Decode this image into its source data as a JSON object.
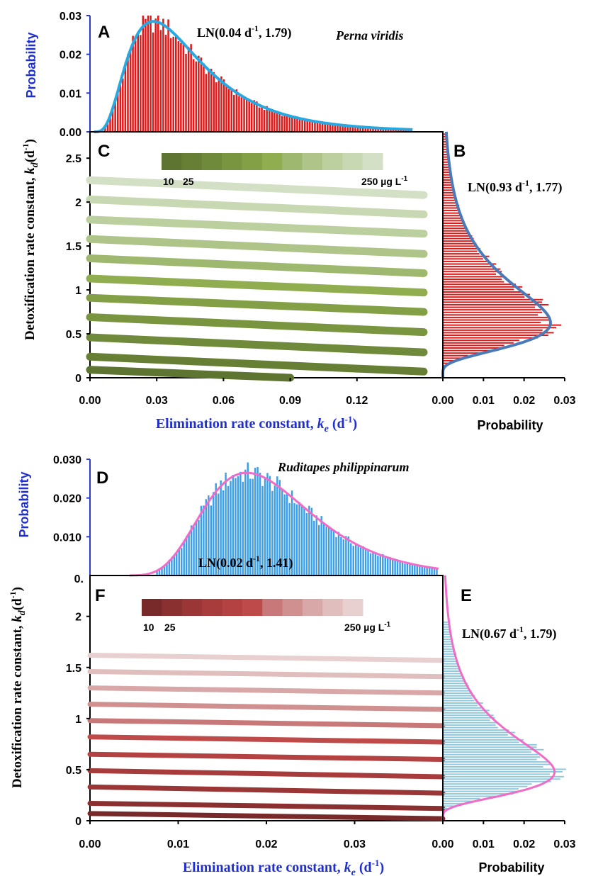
{
  "figure": {
    "colors": {
      "axis_blue": "#2a3bd0",
      "label_blue": "#1f2fd0",
      "red_bars": "#e01818",
      "cyan_curve": "#28a8e0",
      "steel_curve": "#4a7ab8",
      "blue_bars": "#3a9ee8",
      "pink_curve": "#f06cc8",
      "lightblue_bars": "#8cc8e0"
    }
  },
  "chart_data": [
    {
      "panel": "A",
      "type": "bar",
      "panel_label": "A",
      "species": "Perna viridis",
      "fit_label_prefix": "LN(0.04 d",
      "fit_label_sup": "-1",
      "fit_label_suffix": ", 1.79)",
      "ylabel": "Probability",
      "yticks": [
        "0.00",
        "0.01",
        "0.02",
        "0.03"
      ],
      "ylim": [
        0,
        0.03
      ],
      "xlim": [
        0,
        0.15
      ],
      "distribution": {
        "family": "lognormal",
        "median": 0.04,
        "gsd": 1.79,
        "peak": 0.0285
      },
      "bars": {
        "count": 125,
        "start": 0.003,
        "end": 0.145
      }
    },
    {
      "panel": "B",
      "type": "bar",
      "orientation": "horizontal",
      "panel_label": "B",
      "fit_label_prefix": "LN(0.93 d",
      "fit_label_sup": "-1",
      "fit_label_suffix": ", 1.77)",
      "xlabel": "Probability",
      "xticks": [
        "0.00",
        "0.01",
        "0.02",
        "0.03"
      ],
      "xlim": [
        0,
        0.03
      ],
      "ylim": [
        0,
        3
      ],
      "distribution": {
        "family": "lognormal",
        "median": 0.93,
        "gsd": 1.77,
        "peak": 0.0265,
        "mode": 0.68
      },
      "bars": {
        "count": 95,
        "start": 0.03,
        "end": 2.98
      }
    },
    {
      "panel": "C",
      "type": "line",
      "panel_label": "C",
      "xlabel_prefix": "Elimination rate constant, ",
      "xlabel_var": "k",
      "xlabel_sub": "e",
      "xlabel_suffix": " (d",
      "xlabel_sup": "-1",
      "xlabel_end": ")",
      "xticks": [
        "0.00",
        "0.03",
        "0.06",
        "0.09",
        "0.12"
      ],
      "xtick_values": [
        0,
        0.03,
        0.06,
        0.09,
        0.12
      ],
      "xlim": [
        0,
        0.15
      ],
      "yticks": [
        "0",
        "0.5",
        "1",
        "1.5",
        "2",
        "2.5"
      ],
      "ytick_values": [
        0,
        0.5,
        1,
        1.5,
        2,
        2.5
      ],
      "ylim": [
        0,
        2.8
      ],
      "colorbar": {
        "colors": [
          "#5d7530",
          "#667f35",
          "#6f8a3a",
          "#7a9540",
          "#84a047",
          "#90ad50",
          "#9eb870",
          "#aec488",
          "#bccf9e",
          "#c8d8b2",
          "#d4e0c6"
        ],
        "label_low": "10",
        "label_mid": "25",
        "label_high": "250 µg L",
        "label_high_sup": "-1"
      },
      "series": [
        {
          "color": "#5d7530",
          "x": [
            0,
            0.09
          ],
          "y": [
            0.09,
            0.0
          ]
        },
        {
          "color": "#667f35",
          "x": [
            0,
            0.15
          ],
          "y": [
            0.24,
            0.07
          ]
        },
        {
          "color": "#6f8a3a",
          "x": [
            0,
            0.15
          ],
          "y": [
            0.46,
            0.29
          ]
        },
        {
          "color": "#7a9540",
          "x": [
            0,
            0.15
          ],
          "y": [
            0.69,
            0.52
          ]
        },
        {
          "color": "#84a047",
          "x": [
            0,
            0.15
          ],
          "y": [
            0.91,
            0.75
          ]
        },
        {
          "color": "#90ad50",
          "x": [
            0,
            0.15
          ],
          "y": [
            1.13,
            0.97
          ]
        },
        {
          "color": "#9eb870",
          "x": [
            0,
            0.15
          ],
          "y": [
            1.36,
            1.19
          ]
        },
        {
          "color": "#aec488",
          "x": [
            0,
            0.15
          ],
          "y": [
            1.58,
            1.41
          ]
        },
        {
          "color": "#bccf9e",
          "x": [
            0,
            0.15
          ],
          "y": [
            1.8,
            1.64
          ]
        },
        {
          "color": "#c8d8b2",
          "x": [
            0,
            0.15
          ],
          "y": [
            2.03,
            1.86
          ]
        },
        {
          "color": "#d4e0c6",
          "x": [
            0,
            0.15
          ],
          "y": [
            2.25,
            2.08
          ]
        }
      ]
    },
    {
      "panel": "D",
      "type": "bar",
      "panel_label": "D",
      "species": "Ruditapes philippinarum",
      "fit_label_prefix": "LN(0.02 d",
      "fit_label_sup": "-1",
      "fit_label_suffix": ", 1.41)",
      "ylabel": "Probability",
      "yticks": [
        "0.010",
        "0.020",
        "0.030"
      ],
      "ylim": [
        0,
        0.03
      ],
      "xlim": [
        0,
        0.04
      ],
      "corner_tick": "0.",
      "distribution": {
        "family": "lognormal",
        "median": 0.02,
        "gsd": 1.41,
        "peak": 0.0265
      },
      "bars": {
        "count": 115,
        "start": 0.0075,
        "end": 0.0395
      }
    },
    {
      "panel": "E",
      "type": "bar",
      "orientation": "horizontal",
      "panel_label": "E",
      "fit_label_prefix": "LN(0.67 d",
      "fit_label_sup": "-1",
      "fit_label_suffix": ", 1.79)",
      "xlabel": "Probability",
      "xticks": [
        "0.00",
        "0.01",
        "0.02",
        "0.03"
      ],
      "xlim": [
        0,
        0.03
      ],
      "ylim": [
        0,
        2.4
      ],
      "distribution": {
        "family": "lognormal",
        "median": 0.67,
        "gsd": 1.79,
        "peak": 0.0275,
        "mode": 0.5
      },
      "bars": {
        "count": 80,
        "start": 0.03,
        "end": 1.95
      }
    },
    {
      "panel": "F",
      "type": "line",
      "panel_label": "F",
      "xlabel_prefix": "Elimination rate constant, ",
      "xlabel_var": "k",
      "xlabel_sub": "e",
      "xlabel_suffix": " (d",
      "xlabel_sup": "-1",
      "xlabel_end": ")",
      "xticks": [
        "0.00",
        "0.01",
        "0.02",
        "0.03"
      ],
      "xtick_values": [
        0,
        0.01,
        0.02,
        0.03
      ],
      "xlim": [
        0,
        0.04
      ],
      "yticks": [
        "0",
        "0.5",
        "1",
        "1.5",
        "2"
      ],
      "ytick_values": [
        0,
        0.5,
        1,
        1.5,
        2
      ],
      "ylim": [
        0,
        2.4
      ],
      "colorbar": {
        "colors": [
          "#782a2a",
          "#8a3030",
          "#9a3636",
          "#a83c3c",
          "#b44242",
          "#bf4a4a",
          "#c87878",
          "#d09090",
          "#d8a8a8",
          "#e0bebe",
          "#e8d0d0"
        ],
        "label_low": "10",
        "label_mid": "25",
        "label_high": "250 µg L",
        "label_high_sup": "-1"
      },
      "series": [
        {
          "color": "#782a2a",
          "x": [
            0,
            0.04
          ],
          "y": [
            0.07,
            0.02
          ]
        },
        {
          "color": "#8a3030",
          "x": [
            0,
            0.04
          ],
          "y": [
            0.17,
            0.12
          ]
        },
        {
          "color": "#9a3636",
          "x": [
            0,
            0.04
          ],
          "y": [
            0.33,
            0.27
          ]
        },
        {
          "color": "#a83c3c",
          "x": [
            0,
            0.04
          ],
          "y": [
            0.49,
            0.43
          ]
        },
        {
          "color": "#b44242",
          "x": [
            0,
            0.04
          ],
          "y": [
            0.65,
            0.6
          ]
        },
        {
          "color": "#bf4a4a",
          "x": [
            0,
            0.04
          ],
          "y": [
            0.82,
            0.77
          ]
        },
        {
          "color": "#c87878",
          "x": [
            0,
            0.04
          ],
          "y": [
            0.98,
            0.93
          ]
        },
        {
          "color": "#d09090",
          "x": [
            0,
            0.04
          ],
          "y": [
            1.14,
            1.09
          ]
        },
        {
          "color": "#d8a8a8",
          "x": [
            0,
            0.04
          ],
          "y": [
            1.3,
            1.25
          ]
        },
        {
          "color": "#e0bebe",
          "x": [
            0,
            0.04
          ],
          "y": [
            1.46,
            1.41
          ]
        },
        {
          "color": "#e8d0d0",
          "x": [
            0,
            0.04
          ],
          "y": [
            1.62,
            1.57
          ]
        }
      ]
    }
  ],
  "shared": {
    "ylabel_prefix": "Detoxification rate constant, ",
    "ylabel_var": "k",
    "ylabel_sub": "d",
    "ylabel_suffix": "(d",
    "ylabel_sup": "-1",
    "ylabel_end": ")"
  }
}
